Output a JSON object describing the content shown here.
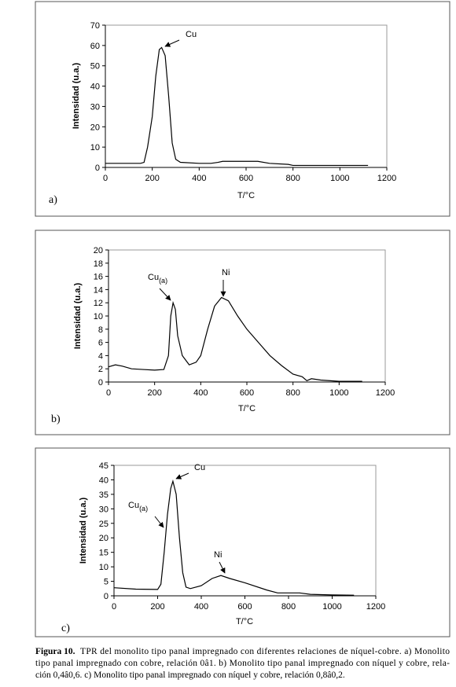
{
  "chart_data": [
    {
      "type": "line",
      "panel": "a)",
      "xlabel": "T/°C",
      "ylabel": "Intensidad (u.a.)",
      "x": [
        0,
        150,
        165,
        180,
        200,
        215,
        230,
        240,
        255,
        270,
        285,
        300,
        320,
        400,
        450,
        480,
        500,
        650,
        700,
        780,
        800,
        1120
      ],
      "series": [
        {
          "color": "#000000",
          "values": [
            2,
            2,
            2.5,
            10,
            25,
            45,
            58,
            59,
            55,
            35,
            12,
            4,
            2.5,
            2,
            2,
            2.5,
            3,
            3,
            2,
            1.5,
            1,
            1
          ]
        }
      ],
      "xlim": [
        0,
        1200
      ],
      "xticks": [
        0,
        200,
        400,
        600,
        800,
        1000,
        1200
      ],
      "ylim": [
        0,
        70
      ],
      "yticks": [
        0,
        10,
        20,
        30,
        40,
        50,
        60,
        70
      ],
      "annotations": [
        {
          "text": "Cu"
        }
      ]
    },
    {
      "type": "line",
      "panel": "b)",
      "xlabel": "T/°C",
      "ylabel": "Intensidad (u.a.)",
      "x": [
        0,
        30,
        60,
        100,
        150,
        200,
        240,
        260,
        270,
        280,
        290,
        300,
        320,
        350,
        380,
        400,
        430,
        460,
        490,
        520,
        560,
        600,
        650,
        700,
        750,
        800,
        840,
        860,
        880,
        920,
        1000,
        1100
      ],
      "series": [
        {
          "color": "#000000",
          "values": [
            2.3,
            2.6,
            2.4,
            2,
            1.9,
            1.8,
            1.9,
            4,
            10,
            12,
            11,
            7,
            4,
            2.6,
            3,
            4,
            8,
            11.5,
            12.8,
            12.3,
            10,
            8,
            6,
            4,
            2.5,
            1.2,
            0.8,
            0.2,
            0.5,
            0.3,
            0.1,
            0.1
          ]
        }
      ],
      "xlim": [
        0,
        1200
      ],
      "xticks": [
        0,
        200,
        400,
        600,
        800,
        1000,
        1200
      ],
      "ylim": [
        0,
        20
      ],
      "yticks": [
        0,
        2,
        4,
        6,
        8,
        10,
        12,
        14,
        16,
        18,
        20
      ],
      "annotations": [
        {
          "text": "Cu",
          "sub": "(a)"
        },
        {
          "text": "Ni"
        }
      ]
    },
    {
      "type": "line",
      "panel": "c)",
      "xlabel": "T/°C",
      "ylabel": "Intensidad (u.a.)",
      "x": [
        0,
        100,
        200,
        215,
        230,
        245,
        260,
        270,
        285,
        300,
        315,
        330,
        350,
        400,
        450,
        490,
        530,
        600,
        700,
        750,
        850,
        900,
        1000,
        1100
      ],
      "series": [
        {
          "color": "#000000",
          "values": [
            2.8,
            2.3,
            2.2,
            4,
            15,
            28,
            37,
            39.5,
            35,
            20,
            8,
            3,
            2.5,
            3.5,
            6,
            7,
            6,
            4.5,
            2,
            1,
            1,
            0.5,
            0.3,
            0.2
          ]
        }
      ],
      "xlim": [
        0,
        1200
      ],
      "xticks": [
        0,
        200,
        400,
        600,
        800,
        1000,
        1200
      ],
      "ylim": [
        0,
        45
      ],
      "yticks": [
        0,
        5,
        10,
        15,
        20,
        25,
        30,
        35,
        40,
        45
      ],
      "annotations": [
        {
          "text": "Cu"
        },
        {
          "text": "Cu",
          "sub": "(a)"
        },
        {
          "text": "Ni"
        }
      ]
    }
  ],
  "caption": {
    "label": "Figura 10.",
    "lines": [
      " TPR del monolito tipo panal impregnado con diferentes relaciones de níquel-cobre. a) Monolito",
      "tipo panal impregnado con cobre, relación 0â1. b) Monolito tipo panal impregnado con níquel y cobre, rela-",
      "ción 0,4â0,6. c) Monolito tipo panal impregnado con níquel y cobre, relación 0,8â0,2."
    ]
  }
}
